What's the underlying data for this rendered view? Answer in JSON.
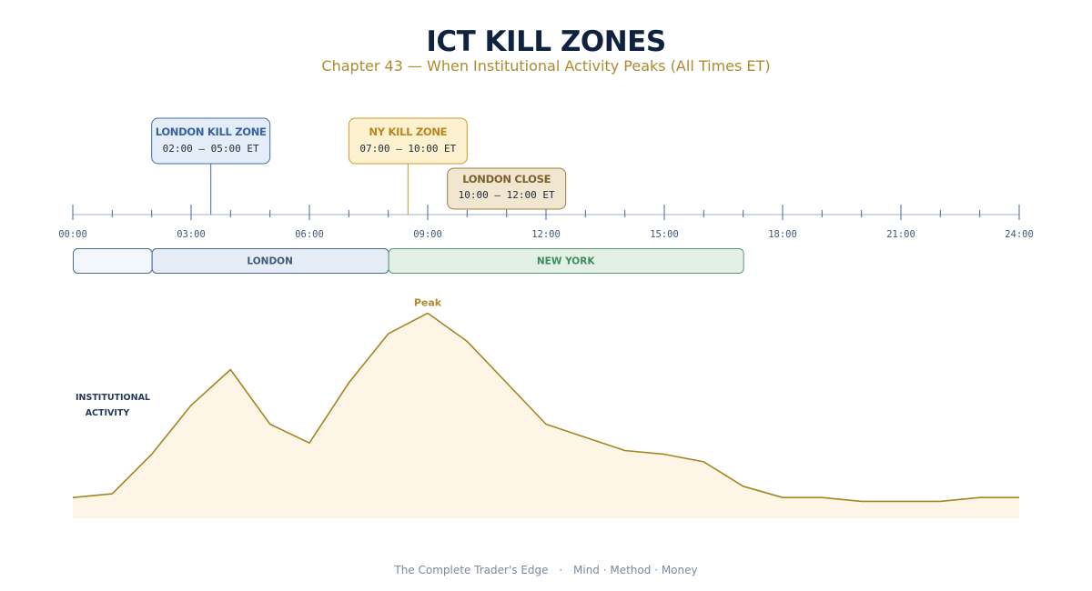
{
  "header": {
    "title": "ICT KILL ZONES",
    "subtitle": "Chapter 43 — When Institutional Activity Peaks (All Times ET)"
  },
  "timeline": {
    "start_hour": 0,
    "end_hour": 24,
    "hour_labels": [
      "00:00",
      "03:00",
      "06:00",
      "09:00",
      "12:00",
      "15:00",
      "18:00",
      "21:00",
      "24:00"
    ],
    "axis_color": "#9fb2c8",
    "label_color": "#3d5a7a"
  },
  "kill_zones": [
    {
      "id": "london-kill-zone",
      "title": "LONDON KILL ZONE",
      "range": "02:00 – 05:00 ET",
      "start_hour": 2,
      "end_hour": 5,
      "fill": "#e4edf8",
      "stroke": "#3f6da6",
      "title_color": "#3563a0",
      "text_color": "#1e2a3a"
    },
    {
      "id": "ny-kill-zone",
      "title": "NY KILL ZONE",
      "range": "07:00 – 10:00 ET",
      "start_hour": 7,
      "end_hour": 10,
      "fill": "#fdf1cf",
      "stroke": "#c99a2a",
      "title_color": "#b8861f",
      "text_color": "#1e2a3a"
    },
    {
      "id": "london-close",
      "title": "LONDON CLOSE",
      "range": "10:00 – 12:00 ET",
      "start_hour": 10,
      "end_hour": 12,
      "fill": "#f1e6cf",
      "stroke": "#a07d45",
      "title_color": "#7d5f2e",
      "text_color": "#1e2a3a"
    }
  ],
  "sessions": [
    {
      "id": "asia",
      "label": "",
      "start_hour": 0,
      "end_hour": 2,
      "fill": "#f3f6fa",
      "stroke": "#4a6a90",
      "text_color": "#3d5a7a"
    },
    {
      "id": "london",
      "label": "LONDON",
      "start_hour": 2,
      "end_hour": 8,
      "fill": "#e6edf6",
      "stroke": "#4a6a90",
      "text_color": "#3d5a7a"
    },
    {
      "id": "new-york",
      "label": "NEW YORK",
      "start_hour": 8,
      "end_hour": 17,
      "fill": "#e3f0e6",
      "stroke": "#5b9a72",
      "text_color": "#3f8a5a"
    }
  ],
  "chart_data": {
    "type": "area",
    "title": "",
    "ylabel": "INSTITUTIONAL ACTIVITY",
    "xlabel": "",
    "x_unit": "hour ET",
    "xlim": [
      0,
      24
    ],
    "ylim": [
      0,
      100
    ],
    "annotations": [
      {
        "x": 9,
        "text": "Peak"
      }
    ],
    "series": [
      {
        "x": [
          0,
          1,
          2,
          3,
          4,
          5,
          6,
          7,
          8,
          9,
          10,
          11,
          12,
          13,
          14,
          15,
          16,
          17,
          18,
          19,
          20,
          21,
          22,
          23,
          24
        ],
        "y": [
          11,
          13,
          34,
          60,
          79,
          50,
          40,
          72,
          98,
          109,
          94,
          72,
          50,
          43,
          36,
          34,
          30,
          17,
          11,
          11,
          9,
          9,
          9,
          11,
          11
        ]
      }
    ],
    "line_color": "#a68420",
    "fill_color": "#fdf6e6"
  },
  "footer": {
    "brand": "The Complete Trader's Edge",
    "separator": "·",
    "tagline": "Mind · Method · Money"
  }
}
